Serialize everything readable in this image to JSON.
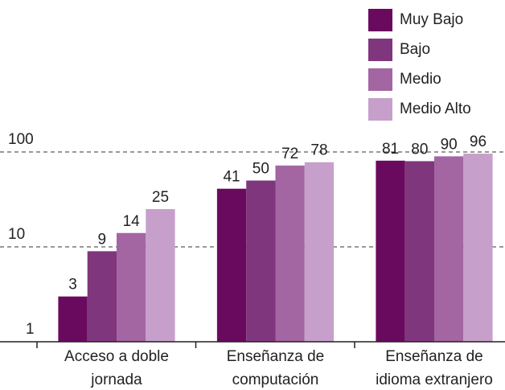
{
  "chart_data": {
    "type": "bar",
    "log_scale": true,
    "grid": true,
    "legend": "top-right",
    "categories": [
      [
        "Acceso a doble",
        "jornada"
      ],
      [
        "Enseñanza de",
        "computación"
      ],
      [
        "Enseñanza de",
        "idioma extranjero"
      ]
    ],
    "series": [
      {
        "name": "Muy Bajo",
        "color": "#6a0a5e",
        "values": [
          3,
          41,
          81
        ]
      },
      {
        "name": "Bajo",
        "color": "#80367d",
        "values": [
          9,
          50,
          80
        ]
      },
      {
        "name": "Medio",
        "color": "#a465a3",
        "values": [
          14,
          72,
          90
        ]
      },
      {
        "name": "Medio Alto",
        "color": "#c69fca",
        "values": [
          25,
          78,
          96
        ]
      }
    ],
    "ylim": [
      1,
      1000
    ],
    "yticks": [
      1,
      10,
      100
    ]
  }
}
